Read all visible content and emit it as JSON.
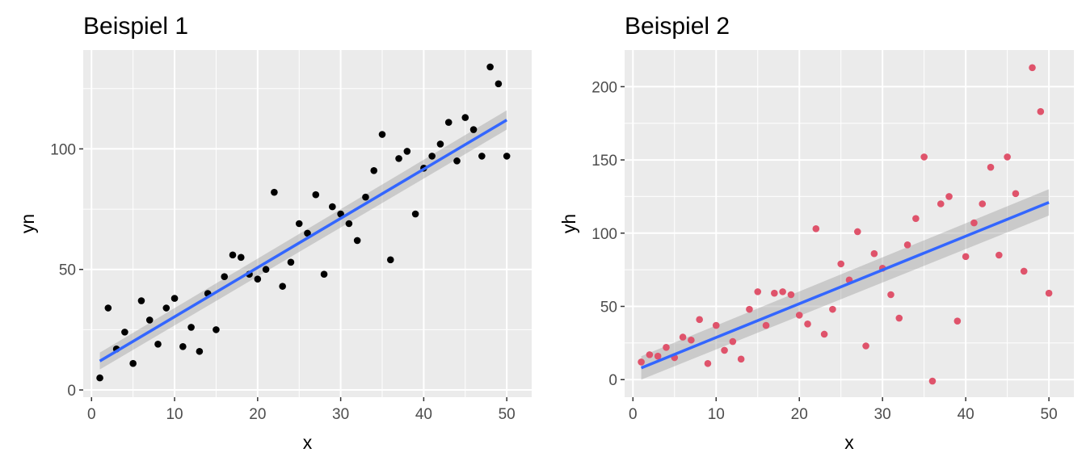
{
  "chart_data": [
    {
      "type": "scatter",
      "title": "Beispiel 1",
      "xlabel": "x",
      "ylabel": "yn",
      "xlim": [
        -1,
        53
      ],
      "ylim": [
        -3,
        141
      ],
      "xticks": [
        0,
        10,
        20,
        30,
        40,
        50
      ],
      "yticks": [
        0,
        50,
        100
      ],
      "xtick_labels": [
        "0",
        "10",
        "20",
        "30",
        "40",
        "50"
      ],
      "ytick_labels": [
        "0",
        "50",
        "100"
      ],
      "grid": true,
      "point_color": "#000000",
      "line_color": "#3366ff",
      "band_color": "#999999",
      "x": [
        1,
        2,
        3,
        4,
        5,
        6,
        7,
        8,
        9,
        10,
        11,
        12,
        13,
        14,
        15,
        16,
        17,
        18,
        19,
        20,
        21,
        22,
        23,
        24,
        25,
        26,
        27,
        28,
        29,
        30,
        31,
        32,
        33,
        34,
        35,
        36,
        37,
        38,
        39,
        40,
        41,
        42,
        43,
        44,
        45,
        46,
        47,
        48,
        49,
        50
      ],
      "y": [
        5,
        34,
        17,
        24,
        11,
        37,
        29,
        19,
        34,
        38,
        18,
        26,
        16,
        40,
        25,
        47,
        56,
        55,
        48,
        46,
        50,
        82,
        43,
        53,
        69,
        65,
        81,
        48,
        76,
        73,
        69,
        62,
        80,
        91,
        106,
        54,
        96,
        99,
        73,
        92,
        97,
        102,
        111,
        95,
        113,
        108,
        97,
        134,
        127,
        97
      ],
      "fit": {
        "x": [
          1,
          50
        ],
        "y": [
          12,
          112
        ]
      },
      "band_lower": [
        8.5,
        108
      ],
      "band_upper": [
        15.5,
        116
      ]
    },
    {
      "type": "scatter",
      "title": "Beispiel 2",
      "xlabel": "x",
      "ylabel": "yh",
      "xlim": [
        -1,
        53
      ],
      "ylim": [
        -12,
        225
      ],
      "xticks": [
        0,
        10,
        20,
        30,
        40,
        50
      ],
      "yticks": [
        0,
        50,
        100,
        150,
        200
      ],
      "xtick_labels": [
        "0",
        "10",
        "20",
        "30",
        "40",
        "50"
      ],
      "ytick_labels": [
        "0",
        "50",
        "100",
        "150",
        "200"
      ],
      "grid": true,
      "point_color": "#df536b",
      "line_color": "#3366ff",
      "band_color": "#999999",
      "x": [
        1,
        2,
        3,
        4,
        5,
        6,
        7,
        8,
        9,
        10,
        11,
        12,
        13,
        14,
        15,
        16,
        17,
        18,
        19,
        20,
        21,
        22,
        23,
        24,
        25,
        26,
        27,
        28,
        29,
        30,
        31,
        32,
        33,
        34,
        35,
        36,
        37,
        38,
        39,
        40,
        41,
        42,
        43,
        44,
        45,
        46,
        47,
        48,
        49,
        50
      ],
      "y": [
        12,
        17,
        16,
        22,
        15,
        29,
        27,
        41,
        11,
        37,
        20,
        26,
        14,
        48,
        60,
        37,
        59,
        60,
        58,
        44,
        38,
        103,
        31,
        48,
        79,
        68,
        101,
        23,
        86,
        76,
        58,
        42,
        92,
        110,
        152,
        -1,
        120,
        125,
        40,
        84,
        107,
        120,
        145,
        85,
        152,
        127,
        74,
        213,
        183,
        59
      ],
      "fit": {
        "x": [
          1,
          50
        ],
        "y": [
          8,
          121
        ]
      },
      "band_lower": [
        0,
        112
      ],
      "band_upper": [
        16,
        130
      ]
    }
  ]
}
